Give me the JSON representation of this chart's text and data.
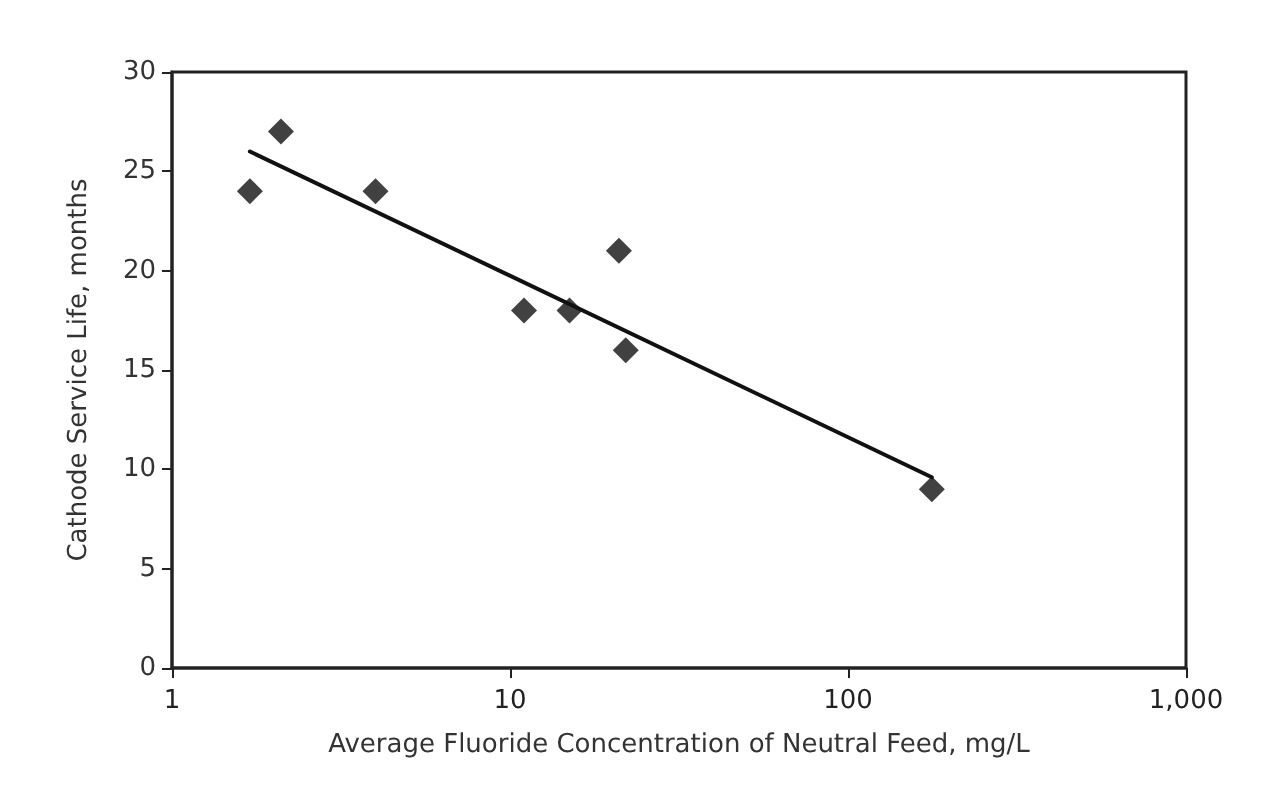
{
  "chart_data": {
    "type": "scatter",
    "xlabel": "Average Fluoride Concentration of Neutral Feed, mg/L",
    "ylabel": "Cathode Service Life, months",
    "log": "x",
    "xlim": [
      1,
      1000
    ],
    "xticks": [
      1,
      10,
      100,
      {
        "value": 1000,
        "label": "1,000"
      }
    ],
    "ylim": [
      0,
      30
    ],
    "yticks": [
      0,
      5,
      10,
      15,
      20,
      25,
      30
    ],
    "grid": false,
    "series": [
      {
        "color": "#111111",
        "marker": "diamond",
        "x": [
          1.7,
          2.1,
          4.0,
          11,
          15,
          21,
          22,
          177
        ],
        "values": [
          24,
          27,
          24,
          18,
          18,
          21,
          16,
          9
        ]
      },
      {
        "type": "line",
        "color": "#111111",
        "marker": "none",
        "line_style": "solid",
        "x": [
          1.7,
          177
        ],
        "values": [
          26,
          9.6
        ]
      }
    ]
  }
}
